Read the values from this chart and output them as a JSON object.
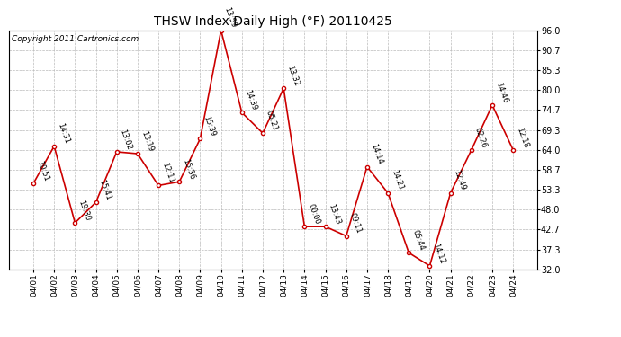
{
  "title": "THSW Index Daily High (°F) 20110425",
  "copyright": "Copyright 2011 Cartronics.com",
  "dates": [
    "04/01",
    "04/02",
    "04/03",
    "04/04",
    "04/05",
    "04/06",
    "04/07",
    "04/08",
    "04/09",
    "04/10",
    "04/11",
    "04/12",
    "04/13",
    "04/14",
    "04/15",
    "04/16",
    "04/17",
    "04/18",
    "04/19",
    "04/20",
    "04/21",
    "04/22",
    "04/23",
    "04/24"
  ],
  "values": [
    55.0,
    65.0,
    44.5,
    50.0,
    63.5,
    63.0,
    54.5,
    55.5,
    67.0,
    96.0,
    74.0,
    68.5,
    80.5,
    43.5,
    43.5,
    41.0,
    59.5,
    52.5,
    36.5,
    33.0,
    52.5,
    64.0,
    76.0,
    64.0
  ],
  "times": [
    "10:51",
    "14:31",
    "19:30",
    "15:41",
    "13:02",
    "13:19",
    "12:11",
    "15:36",
    "15:39",
    "13:59",
    "14:39",
    "05:21",
    "13:32",
    "00:00",
    "13:43",
    "09:11",
    "14:14",
    "14:21",
    "05:44",
    "14:12",
    "12:49",
    "02:26",
    "14:46",
    "12:18"
  ],
  "line_color": "#cc0000",
  "marker_color": "#cc0000",
  "bg_color": "#ffffff",
  "grid_color": "#bbbbbb",
  "ylim": [
    32.0,
    96.0
  ],
  "yticks": [
    32.0,
    37.3,
    42.7,
    48.0,
    53.3,
    58.7,
    64.0,
    69.3,
    74.7,
    80.0,
    85.3,
    90.7,
    96.0
  ],
  "title_fontsize": 10,
  "copyright_fontsize": 6.5,
  "annotation_fontsize": 6.0
}
